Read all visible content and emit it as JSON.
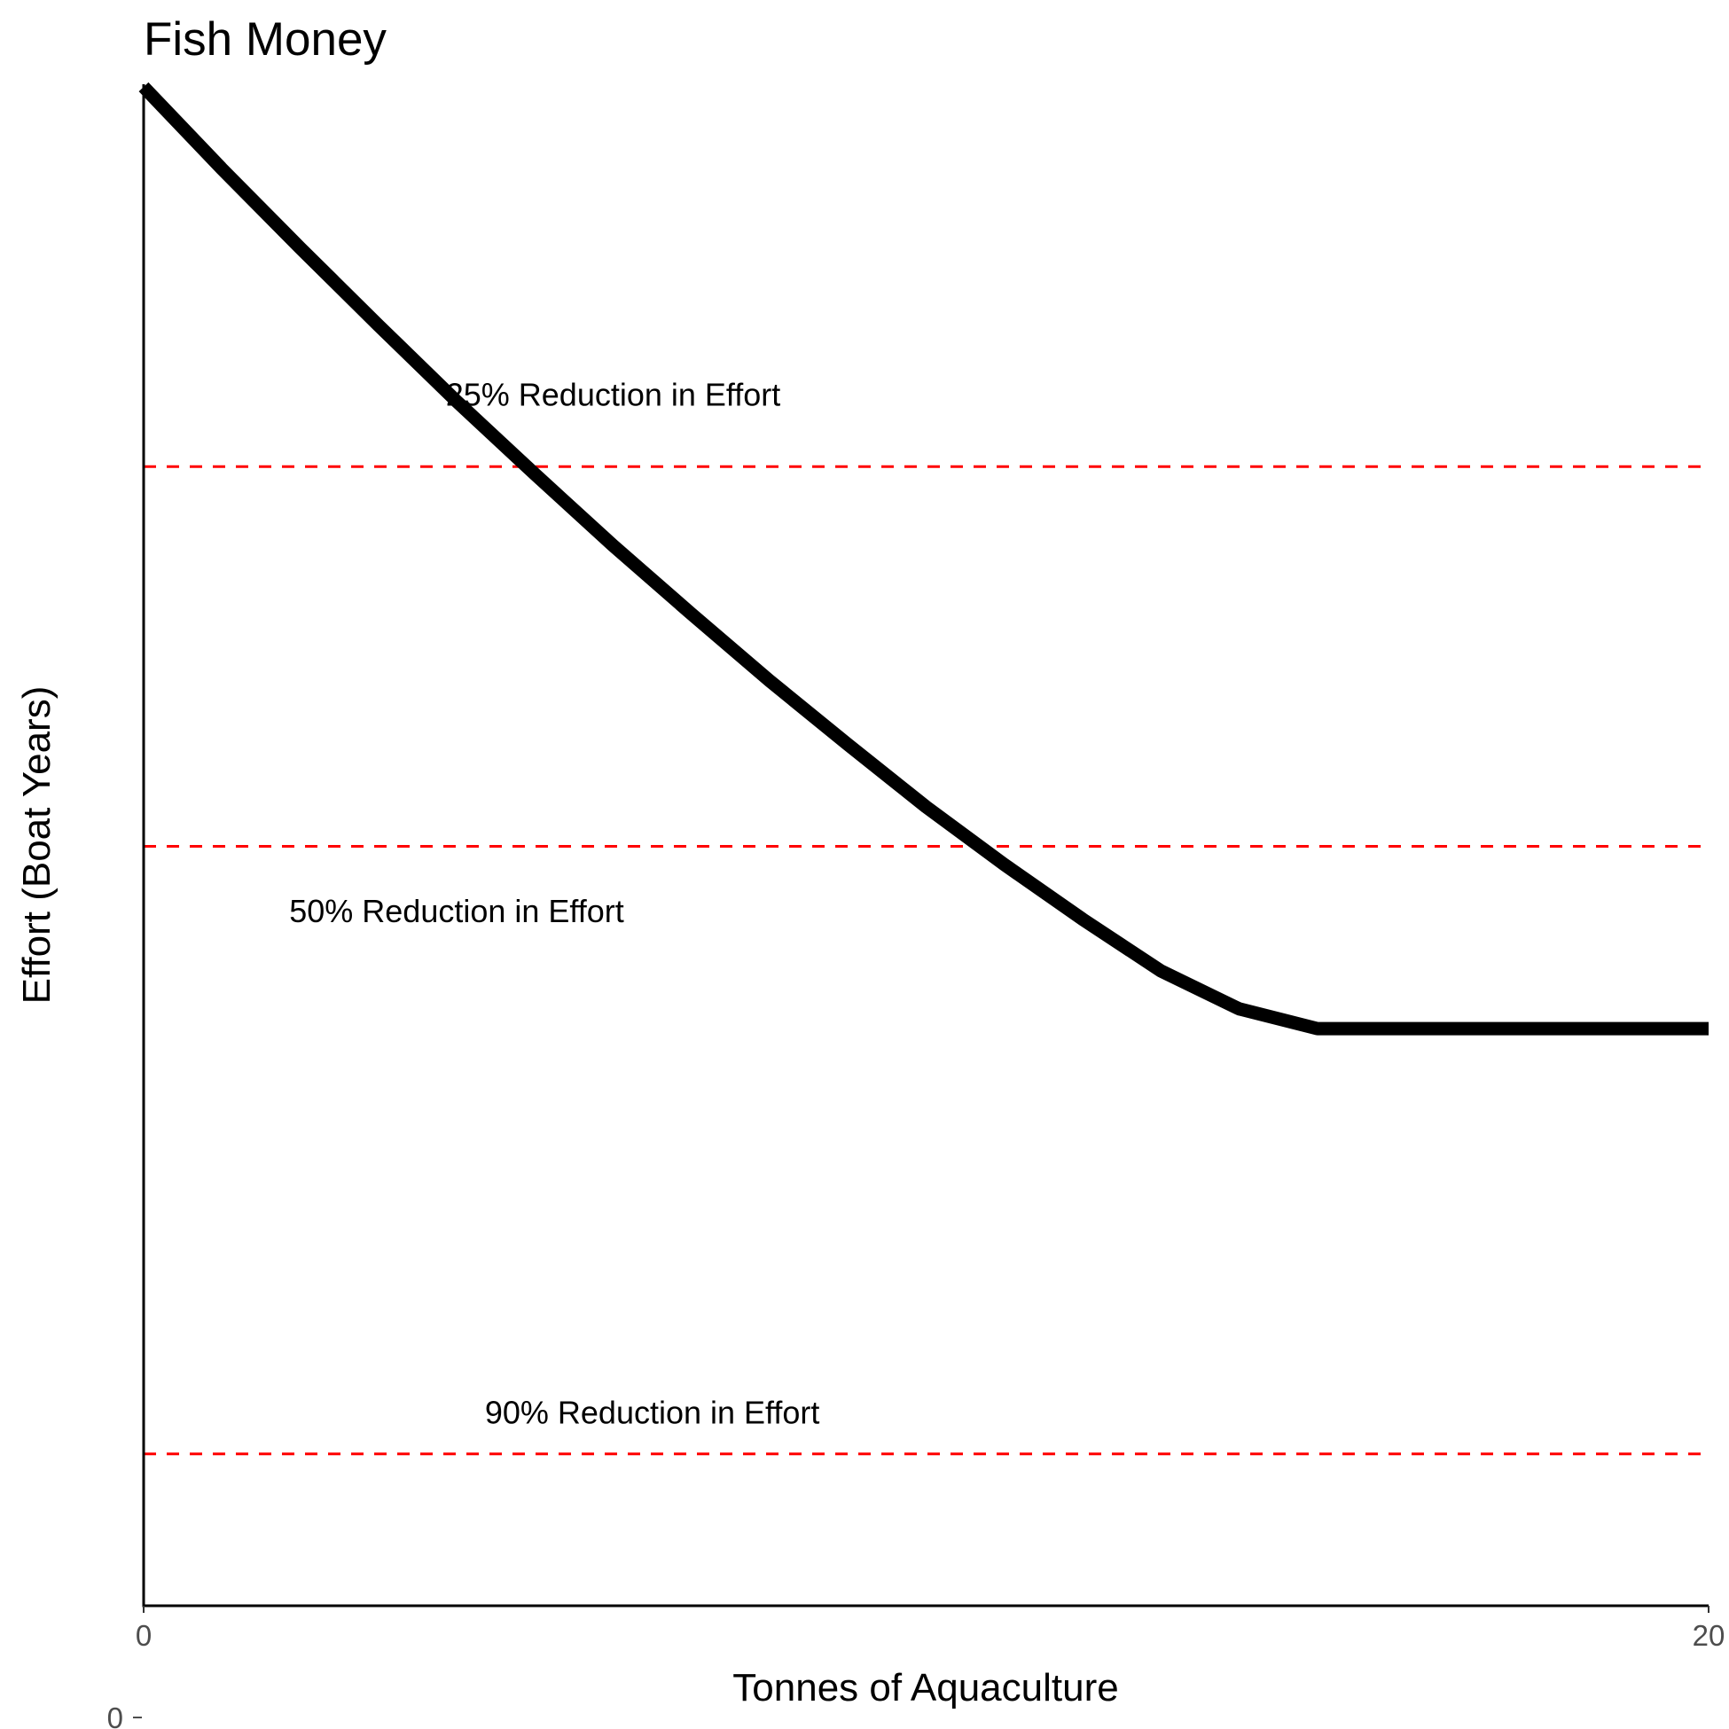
{
  "chart_data": {
    "type": "line",
    "title": "Fish Money",
    "xlabel": "Tonnes of Aquaculture",
    "ylabel": "Effort (Boat Years)",
    "xlim": [
      0,
      20
    ],
    "ylim": [
      0,
      1
    ],
    "grid": false,
    "x_ticks": [
      "0",
      "20"
    ],
    "y_ticks": [
      "0"
    ],
    "series": [
      {
        "color": "#000000",
        "x": [
          0,
          1,
          2,
          3,
          4,
          5,
          6,
          7,
          8,
          9,
          10,
          11,
          12,
          13,
          14,
          15,
          16,
          17,
          18,
          19,
          20
        ],
        "y": [
          1.0,
          0.946,
          0.894,
          0.843,
          0.793,
          0.745,
          0.698,
          0.653,
          0.609,
          0.567,
          0.526,
          0.488,
          0.452,
          0.418,
          0.393,
          0.38,
          0.38,
          0.38,
          0.38,
          0.38,
          0.38
        ]
      }
    ],
    "reference_lines": [
      {
        "y": 0.75,
        "color": "#ff0000",
        "style": "dashed"
      },
      {
        "y": 0.5,
        "color": "#ff0000",
        "style": "dashed"
      },
      {
        "y": 0.1,
        "color": "#ff0000",
        "style": "dashed"
      }
    ],
    "annotations": [
      {
        "text": "25% Reduction in Effort",
        "x": 6.0,
        "y": 0.79
      },
      {
        "text": "50% Reduction in Effort",
        "x": 4.0,
        "y": 0.45
      },
      {
        "text": "90% Reduction in Effort",
        "x": 6.5,
        "y": 0.12
      }
    ],
    "colors": {
      "line": "#000000",
      "reference": "#ff0000"
    }
  }
}
